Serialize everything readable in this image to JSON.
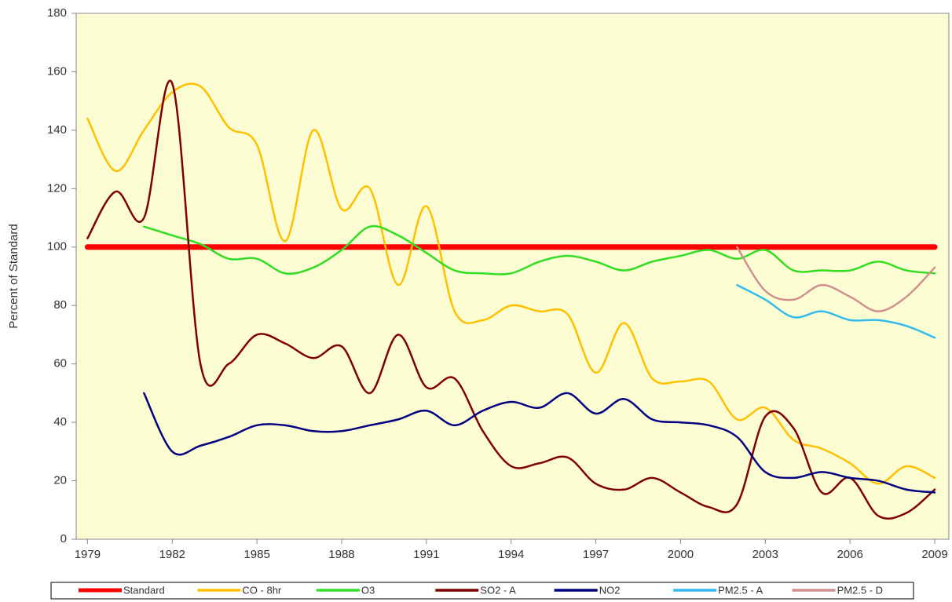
{
  "chart_data": {
    "type": "line",
    "ylabel": "Percent of Standard",
    "x": [
      1979,
      1980,
      1981,
      1982,
      1983,
      1984,
      1985,
      1986,
      1987,
      1988,
      1989,
      1990,
      1991,
      1992,
      1993,
      1994,
      1995,
      1996,
      1997,
      1998,
      1999,
      2000,
      2001,
      2002,
      2003,
      2004,
      2005,
      2006,
      2007,
      2008,
      2009
    ],
    "xlim": [
      1978.6,
      2009.5
    ],
    "xticks": [
      1979,
      1982,
      1985,
      1988,
      1991,
      1994,
      1997,
      2000,
      2003,
      2006,
      2009
    ],
    "ylim": [
      0,
      180
    ],
    "yticks": [
      0,
      20,
      40,
      60,
      80,
      100,
      120,
      140,
      160,
      180
    ],
    "grid": false,
    "legend": "bottom",
    "series": [
      {
        "name": "Standard",
        "color": "#ff0000",
        "width": 7,
        "values": [
          100,
          100,
          100,
          100,
          100,
          100,
          100,
          100,
          100,
          100,
          100,
          100,
          100,
          100,
          100,
          100,
          100,
          100,
          100,
          100,
          100,
          100,
          100,
          100,
          100,
          100,
          100,
          100,
          100,
          100,
          100
        ]
      },
      {
        "name": "CO - 8hr",
        "color": "#ffc000",
        "width": 2.5,
        "values": [
          144,
          126,
          140,
          153,
          155,
          141,
          135,
          102,
          140,
          113,
          120,
          87,
          114,
          78,
          75,
          80,
          78,
          77,
          57,
          74,
          55,
          54,
          54,
          41,
          45,
          34,
          31,
          26,
          19,
          25,
          21
        ]
      },
      {
        "name": "O3",
        "color": "#33dd22",
        "width": 2.5,
        "values": [
          null,
          null,
          107,
          104,
          101,
          96,
          96,
          91,
          93,
          99,
          107,
          104,
          98,
          92,
          91,
          91,
          95,
          97,
          95,
          92,
          95,
          97,
          99,
          96,
          99,
          92,
          92,
          92,
          95,
          92,
          91
        ]
      },
      {
        "name": "SO2 - A",
        "color": "#800000",
        "width": 2.5,
        "values": [
          103,
          119,
          110,
          156,
          60,
          60,
          70,
          67,
          62,
          66,
          50,
          70,
          52,
          55,
          37,
          25,
          26,
          28,
          19,
          17,
          21,
          16,
          11,
          12,
          42,
          38,
          16,
          21,
          8,
          9,
          17
        ]
      },
      {
        "name": "NO2",
        "color": "#000080",
        "width": 2.5,
        "values": [
          null,
          null,
          50,
          30,
          32,
          35,
          39,
          39,
          37,
          37,
          39,
          41,
          44,
          39,
          44,
          47,
          45,
          50,
          43,
          48,
          41,
          40,
          39,
          35,
          23,
          21,
          23,
          21,
          20,
          17,
          16
        ]
      },
      {
        "name": "PM2.5 - A",
        "color": "#33bbee",
        "width": 2.5,
        "values": [
          null,
          null,
          null,
          null,
          null,
          null,
          null,
          null,
          null,
          null,
          null,
          null,
          null,
          null,
          null,
          null,
          null,
          null,
          null,
          null,
          null,
          null,
          null,
          87,
          82,
          76,
          78,
          75,
          75,
          73,
          69
        ]
      },
      {
        "name": "PM2.5 - D",
        "color": "#d09090",
        "width": 2.5,
        "values": [
          null,
          null,
          null,
          null,
          null,
          null,
          null,
          null,
          null,
          null,
          null,
          null,
          null,
          null,
          null,
          null,
          null,
          null,
          null,
          null,
          null,
          null,
          null,
          100,
          85,
          82,
          87,
          83,
          78,
          83,
          93
        ]
      }
    ]
  }
}
